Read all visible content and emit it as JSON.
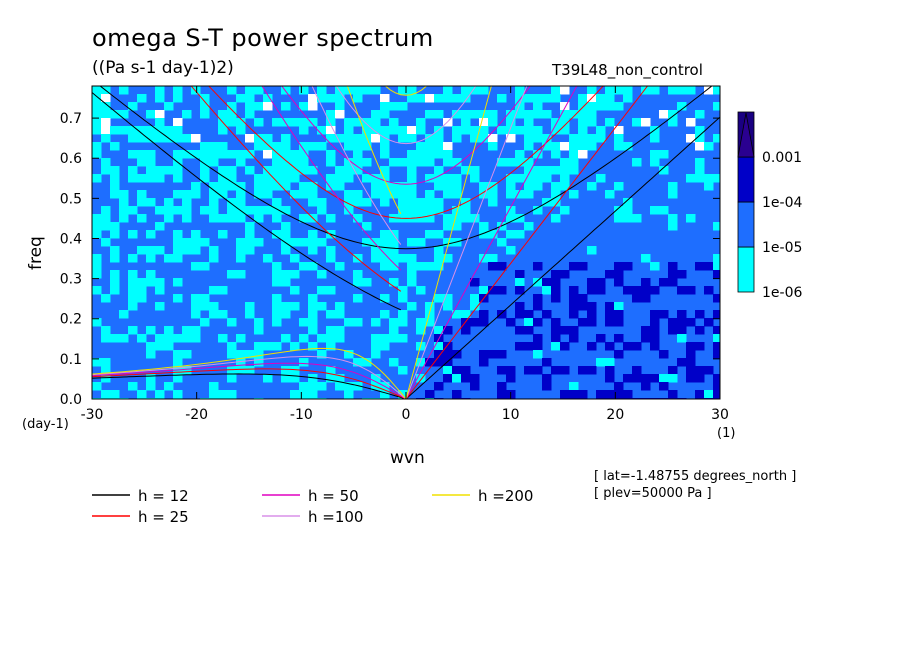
{
  "header": {
    "title": "omega S-T power spectrum",
    "units": "((Pa s-1 day-1)2)",
    "experiment": "T39L48_non_control"
  },
  "footer": {
    "lat": "[ lat=-1.48755 degrees_north ]",
    "plev": "[ plev=50000 Pa ]"
  },
  "chart_data": {
    "type": "heatmap",
    "title": "omega S-T power spectrum",
    "subtitle": "((Pa s-1 day-1)2)",
    "xlabel": "wvn",
    "ylabel": "freq",
    "x_unit": "(1)",
    "y_unit": "(day-1)",
    "xlim": [
      -30,
      30
    ],
    "ylim": [
      0,
      0.78
    ],
    "x_ticks": [
      -30,
      -20,
      -10,
      0,
      10,
      20,
      30
    ],
    "x_tick_labels": [
      "-30",
      "-20",
      "-10",
      "0",
      "10",
      "20",
      "30"
    ],
    "y_ticks": [
      0.0,
      0.1,
      0.2,
      0.3,
      0.4,
      0.5,
      0.6,
      0.7
    ],
    "y_tick_labels": [
      "0.0",
      "0.1",
      "0.2",
      "0.3",
      "0.4",
      "0.5",
      "0.6",
      "0.7"
    ],
    "colorbar": {
      "levels": [
        "1e-06",
        "1e-05",
        "1e-04",
        "0.001"
      ],
      "colors": [
        "#00ffff",
        "#1e6eff",
        "#0000c8",
        "#1a0082",
        "#2a0090"
      ]
    },
    "legend": {
      "title": "",
      "entries": [
        {
          "label": "h = 12",
          "color": "#000000"
        },
        {
          "label": "h = 25",
          "color": "#ff0000"
        },
        {
          "label": "h = 50",
          "color": "#e000c0"
        },
        {
          "label": "h =100",
          "color": "#d890e8"
        },
        {
          "label": "h =200",
          "color": "#f0e000"
        }
      ]
    },
    "dispersion_curves": {
      "equivalent_depths_m": [
        12,
        25,
        50,
        100,
        200
      ],
      "kelvin": true,
      "mrg_rossby": true,
      "n1_inertia_gravity": true,
      "n1_rossby": true
    }
  }
}
